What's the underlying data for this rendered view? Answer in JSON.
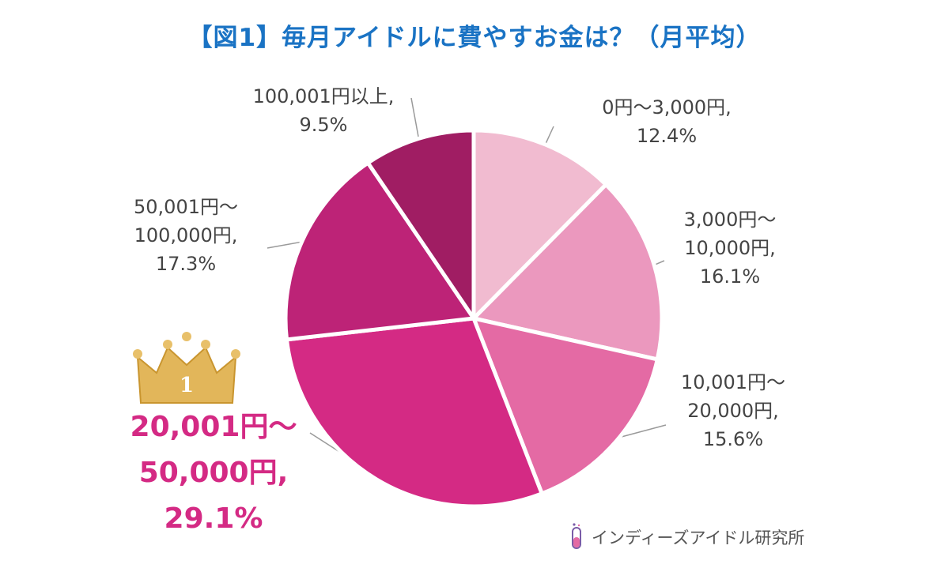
{
  "title": "【図1】毎月アイドルに費やすお金は？（月平均）",
  "logo_text": "インディーズアイドル研究所",
  "rank_badge": "1",
  "colors": {
    "title": "#1a73c4",
    "highlight_label": "#d42a84",
    "slices": [
      "#f1bbd0",
      "#eb98be",
      "#e46aa4",
      "#d42a84",
      "#bd2377",
      "#a01d63"
    ]
  },
  "chart_data": {
    "type": "pie",
    "categories": [
      "0円〜3,000円",
      "3,000円〜10,000円",
      "10,001円〜20,000円",
      "20,001円〜50,000円",
      "50,001円〜100,000円",
      "100,001円以上"
    ],
    "values": [
      12.4,
      16.1,
      15.6,
      29.1,
      17.3,
      9.5
    ],
    "unit": "%",
    "labels": [
      {
        "lines": [
          "0円〜3,000円,",
          "12.4%"
        ]
      },
      {
        "lines": [
          "3,000円〜",
          "10,000円,",
          "16.1%"
        ]
      },
      {
        "lines": [
          "10,001円〜",
          "20,000円,",
          "15.6%"
        ]
      },
      {
        "lines": [
          "20,001円〜",
          "50,000円,",
          "29.1%"
        ],
        "highlight": true
      },
      {
        "lines": [
          "50,001円〜",
          "100,000円,",
          "17.3%"
        ]
      },
      {
        "lines": [
          "100,001円以上,",
          "9.5%"
        ]
      }
    ]
  }
}
